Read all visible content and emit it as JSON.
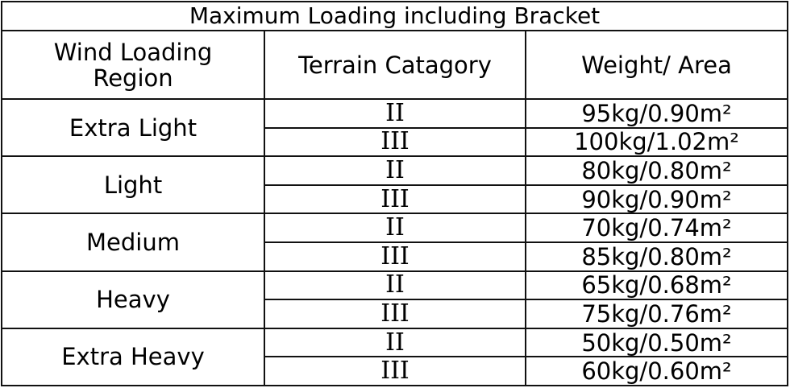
{
  "title": "Maximum Loading including Bracket",
  "headers": {
    "region_line1": "Wind Loading",
    "region_line2": "Region",
    "terrain": "Terrain Catagory",
    "weight": "Weight/ Area"
  },
  "rows": [
    {
      "region": "Extra Light",
      "entries": [
        {
          "terrain": "II",
          "weight": "95kg/0.90m²"
        },
        {
          "terrain": "III",
          "weight": "100kg/1.02m²"
        }
      ]
    },
    {
      "region": "Light",
      "entries": [
        {
          "terrain": "II",
          "weight": "80kg/0.80m²"
        },
        {
          "terrain": "III",
          "weight": "90kg/0.90m²"
        }
      ]
    },
    {
      "region": "Medium",
      "entries": [
        {
          "terrain": "II",
          "weight": "70kg/0.74m²"
        },
        {
          "terrain": "III",
          "weight": "85kg/0.80m²"
        }
      ]
    },
    {
      "region": "Heavy",
      "entries": [
        {
          "terrain": "II",
          "weight": "65kg/0.68m²"
        },
        {
          "terrain": "III",
          "weight": "75kg/0.76m²"
        }
      ]
    },
    {
      "region": "Extra Heavy",
      "entries": [
        {
          "terrain": "II",
          "weight": "50kg/0.50m²"
        },
        {
          "terrain": "III",
          "weight": "60kg/0.60m²"
        }
      ]
    }
  ]
}
